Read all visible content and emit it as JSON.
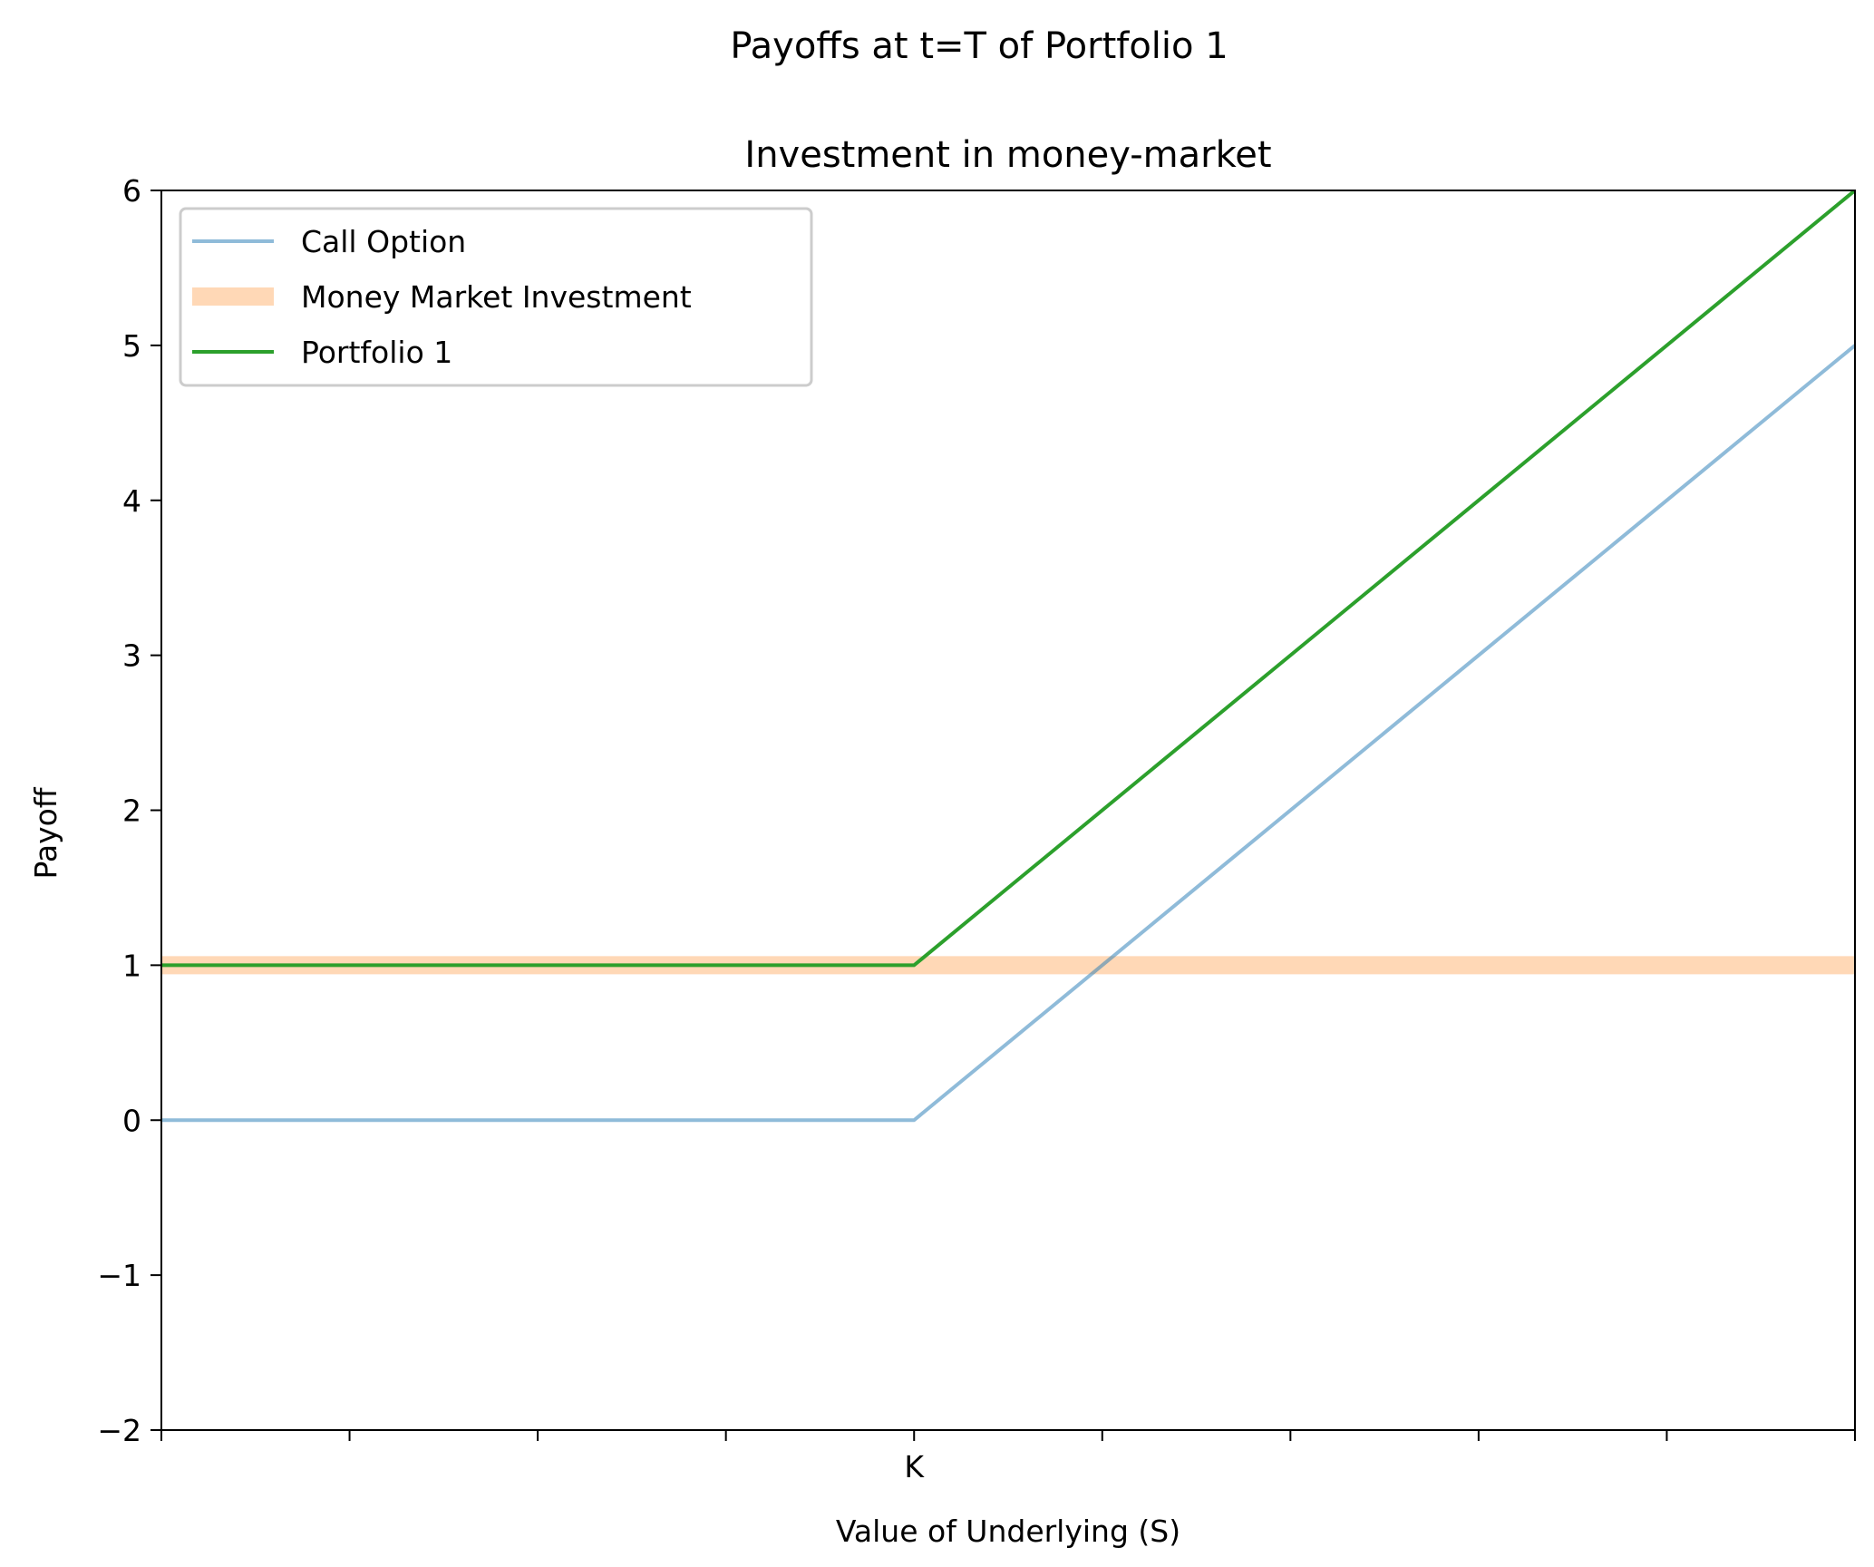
{
  "chart_data": {
    "type": "line",
    "suptitle": "Payoffs at t=T of Portfolio 1",
    "title": "Investment in money-market",
    "xlabel": "Value of Underlying (S)",
    "ylabel": "Payoff",
    "xlim": [
      0,
      9
    ],
    "ylim": [
      -2,
      6
    ],
    "xticks": [
      {
        "value": 0,
        "label": ""
      },
      {
        "value": 1,
        "label": ""
      },
      {
        "value": 2,
        "label": ""
      },
      {
        "value": 3,
        "label": ""
      },
      {
        "value": 4,
        "label": "K"
      },
      {
        "value": 5,
        "label": ""
      },
      {
        "value": 6,
        "label": ""
      },
      {
        "value": 7,
        "label": ""
      },
      {
        "value": 8,
        "label": ""
      },
      {
        "value": 9,
        "label": ""
      }
    ],
    "yticks": [
      {
        "value": -2,
        "label": "−2"
      },
      {
        "value": -1,
        "label": "−1"
      },
      {
        "value": 0,
        "label": "0"
      },
      {
        "value": 1,
        "label": "1"
      },
      {
        "value": 2,
        "label": "2"
      },
      {
        "value": 3,
        "label": "3"
      },
      {
        "value": 4,
        "label": "4"
      },
      {
        "value": 5,
        "label": "5"
      },
      {
        "value": 6,
        "label": "6"
      }
    ],
    "grid": false,
    "legend_position": "upper-left",
    "series": [
      {
        "name": "Call Option",
        "color": "#1f77b4",
        "opacity": 0.5,
        "style": "thin",
        "points": [
          [
            0,
            0
          ],
          [
            4,
            0
          ],
          [
            9,
            5
          ]
        ]
      },
      {
        "name": "Money Market Investment",
        "color": "#ff7f0e",
        "opacity": 0.3,
        "style": "thick",
        "points": [
          [
            0,
            1
          ],
          [
            9,
            1
          ]
        ]
      },
      {
        "name": "Portfolio 1",
        "color": "#2ca02c",
        "opacity": 1,
        "style": "thin",
        "points": [
          [
            0,
            1
          ],
          [
            4,
            1
          ],
          [
            9,
            6
          ]
        ]
      }
    ]
  }
}
